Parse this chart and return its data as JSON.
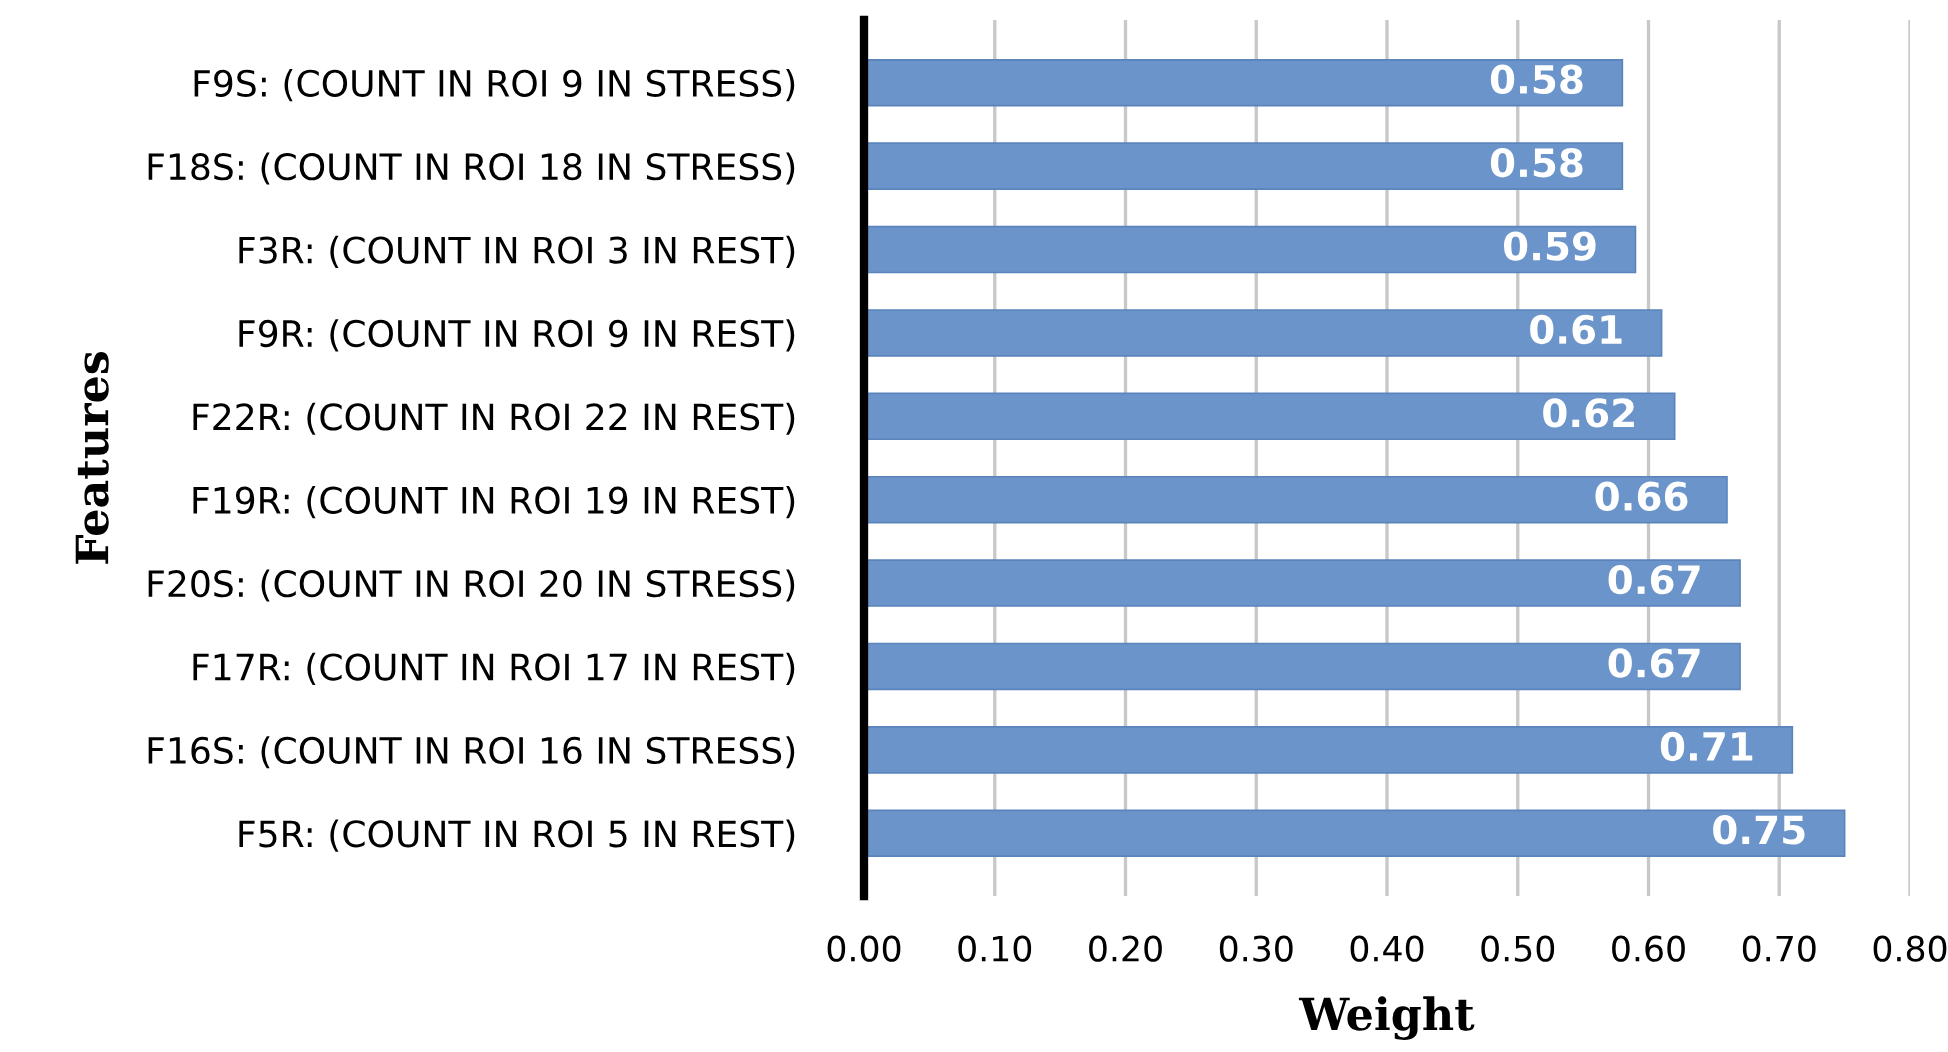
{
  "chart_data": {
    "type": "bar",
    "orientation": "horizontal",
    "xlabel": "Weight",
    "ylabel": "Features",
    "categories": [
      "F9S: (COUNT IN ROI 9 IN STRESS)",
      "F18S: (COUNT IN ROI 18 IN STRESS)",
      "F3R: (COUNT IN ROI 3 IN REST)",
      "F9R: (COUNT IN ROI 9 IN REST)",
      "F22R: (COUNT IN ROI 22 IN REST)",
      "F19R: (COUNT IN ROI 19 IN REST)",
      "F20S: (COUNT IN ROI 20 IN STRESS)",
      "F17R: (COUNT IN ROI 17 IN REST)",
      "F16S: (COUNT IN ROI 16 IN STRESS)",
      "F5R: (COUNT IN ROI 5 IN REST)"
    ],
    "values": [
      0.58,
      0.58,
      0.59,
      0.61,
      0.62,
      0.66,
      0.67,
      0.67,
      0.71,
      0.75
    ],
    "color": "#6b95ca",
    "data_labels": true,
    "xlim": [
      0,
      0.8
    ],
    "xticks": [
      {
        "value": 0,
        "label": "0.00"
      },
      {
        "value": 0.1,
        "label": "0.10"
      },
      {
        "value": 0.2,
        "label": "0.20"
      },
      {
        "value": 0.3,
        "label": "0.30"
      },
      {
        "value": 0.4,
        "label": "0.40"
      },
      {
        "value": 0.5,
        "label": "0.50"
      },
      {
        "value": 0.6,
        "label": "0.60"
      },
      {
        "value": 0.7,
        "label": "0.70"
      },
      {
        "value": 0.8,
        "label": "0.80"
      }
    ],
    "grid": "x",
    "legend": false
  }
}
